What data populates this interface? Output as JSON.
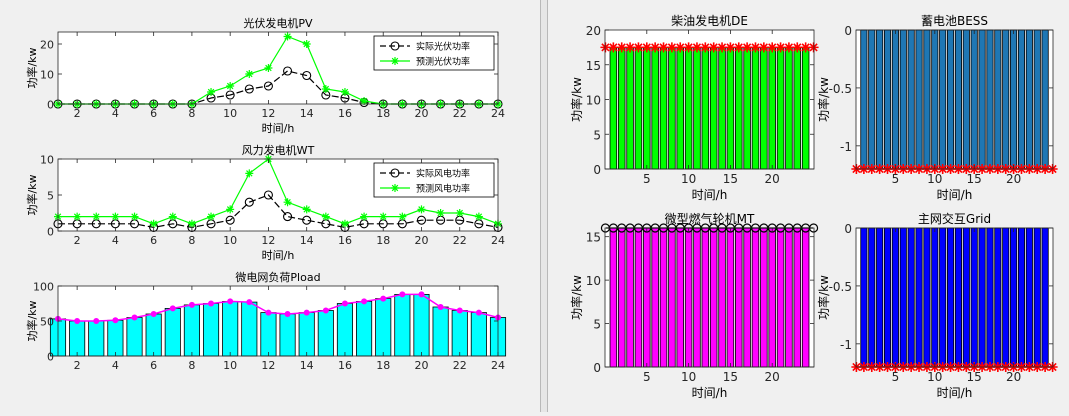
{
  "chart_data": [
    {
      "id": "pv",
      "type": "line",
      "title": "光伏发电机PV",
      "xlabel": "时间/h",
      "ylabel": "功率/kw",
      "x": [
        1,
        2,
        3,
        4,
        5,
        6,
        7,
        8,
        9,
        10,
        11,
        12,
        13,
        14,
        15,
        16,
        17,
        18,
        19,
        20,
        21,
        22,
        23,
        24
      ],
      "xlim": [
        1,
        24
      ],
      "ylim": [
        0,
        24
      ],
      "xticks": [
        2,
        4,
        6,
        8,
        10,
        12,
        14,
        16,
        18,
        20,
        22,
        24
      ],
      "yticks": [
        0,
        10,
        20
      ],
      "legend_position": "top-right",
      "series": [
        {
          "name": "实际光伏功率",
          "color": "#000000",
          "marker": "circle",
          "values": [
            0,
            0,
            0,
            0,
            0,
            0,
            0,
            0,
            2,
            3,
            5,
            6,
            11,
            9.5,
            3,
            2,
            0.5,
            0,
            0,
            0,
            0,
            0,
            0,
            0
          ]
        },
        {
          "name": "预测光伏功率",
          "color": "#00ff00",
          "marker": "star",
          "values": [
            0,
            0,
            0,
            0,
            0,
            0,
            0,
            0,
            4,
            6,
            10,
            12,
            22.5,
            20,
            5,
            4,
            1,
            0,
            0,
            0,
            0,
            0,
            0,
            0
          ]
        }
      ]
    },
    {
      "id": "wt",
      "type": "line",
      "title": "风力发电机WT",
      "xlabel": "时间/h",
      "ylabel": "功率/kw",
      "x": [
        1,
        2,
        3,
        4,
        5,
        6,
        7,
        8,
        9,
        10,
        11,
        12,
        13,
        14,
        15,
        16,
        17,
        18,
        19,
        20,
        21,
        22,
        23,
        24
      ],
      "xlim": [
        1,
        24
      ],
      "ylim": [
        0,
        10
      ],
      "xticks": [
        2,
        4,
        6,
        8,
        10,
        12,
        14,
        16,
        18,
        20,
        22,
        24
      ],
      "yticks": [
        0,
        5,
        10
      ],
      "legend_position": "top-right",
      "series": [
        {
          "name": "实际风电功率",
          "color": "#000000",
          "marker": "circle",
          "values": [
            1,
            1,
            1,
            1,
            1,
            0.5,
            1,
            0.5,
            1,
            1.5,
            4,
            5,
            2,
            1.5,
            1,
            0.5,
            1,
            1,
            1,
            1.5,
            1.5,
            1.5,
            1,
            0.5
          ]
        },
        {
          "name": "预测风电功率",
          "color": "#00ff00",
          "marker": "star",
          "values": [
            2,
            2,
            2,
            2,
            2,
            1,
            2,
            1,
            2,
            3,
            8,
            10,
            4,
            3,
            2,
            1,
            2,
            2,
            2,
            3,
            2.5,
            2.5,
            2,
            1
          ]
        }
      ]
    },
    {
      "id": "load",
      "type": "bar",
      "title": "微电网负荷Pload",
      "xlabel": "",
      "ylabel": "功率/kw",
      "x": [
        1,
        2,
        3,
        4,
        5,
        6,
        7,
        8,
        9,
        10,
        11,
        12,
        13,
        14,
        15,
        16,
        17,
        18,
        19,
        20,
        21,
        22,
        23,
        24
      ],
      "xlim": [
        1,
        24
      ],
      "ylim": [
        0,
        100
      ],
      "xticks": [
        2,
        4,
        6,
        8,
        10,
        12,
        14,
        16,
        18,
        20,
        22,
        24
      ],
      "yticks": [
        0,
        50,
        100
      ],
      "bar_color": "#00ffff",
      "line_color": "#ff00ff",
      "values": [
        53,
        50,
        50,
        51,
        55,
        60,
        68,
        73,
        75,
        78,
        77,
        62,
        60,
        62,
        65,
        75,
        78,
        82,
        88,
        88,
        70,
        65,
        62,
        55
      ]
    },
    {
      "id": "de",
      "type": "bar",
      "title": "柴油发电机DE",
      "xlabel": "时间/h",
      "ylabel": "功率/kw",
      "x": [
        1,
        2,
        3,
        4,
        5,
        6,
        7,
        8,
        9,
        10,
        11,
        12,
        13,
        14,
        15,
        16,
        17,
        18,
        19,
        20,
        21,
        22,
        23,
        24
      ],
      "xlim": [
        0,
        25
      ],
      "ylim": [
        0,
        20
      ],
      "xticks": [
        5,
        10,
        15,
        20
      ],
      "yticks": [
        0,
        5,
        10,
        15,
        20
      ],
      "bar_color": "#00ff00",
      "marker_color": "#ff0000",
      "marker": "star",
      "values": [
        17.5,
        17.5,
        17.5,
        17.5,
        17.5,
        17.5,
        17.5,
        17.5,
        17.5,
        17.5,
        17.5,
        17.5,
        17.5,
        17.5,
        17.5,
        17.5,
        17.5,
        17.5,
        17.5,
        17.5,
        17.5,
        17.5,
        17.5,
        17.5
      ]
    },
    {
      "id": "bess",
      "type": "bar",
      "title": "蓄电池BESS",
      "xlabel": "时间/h",
      "ylabel": "功率/kw",
      "x": [
        1,
        2,
        3,
        4,
        5,
        6,
        7,
        8,
        9,
        10,
        11,
        12,
        13,
        14,
        15,
        16,
        17,
        18,
        19,
        20,
        21,
        22,
        23,
        24
      ],
      "xlim": [
        0,
        25
      ],
      "ylim": [
        -1.2,
        0
      ],
      "xticks": [
        5,
        10,
        15,
        20
      ],
      "yticks": [
        -1,
        -0.5,
        0
      ],
      "bar_color": "#1f77b4",
      "marker_color": "#ff0000",
      "marker": "star",
      "values": [
        -1.2,
        -1.2,
        -1.2,
        -1.2,
        -1.2,
        -1.2,
        -1.2,
        -1.2,
        -1.2,
        -1.2,
        -1.2,
        -1.2,
        -1.2,
        -1.2,
        -1.2,
        -1.2,
        -1.2,
        -1.2,
        -1.2,
        -1.2,
        -1.2,
        -1.2,
        -1.2,
        -1.2
      ]
    },
    {
      "id": "mt",
      "type": "bar",
      "title": "微型燃气轮机MT",
      "xlabel": "时间/h",
      "ylabel": "功率/kw",
      "x": [
        1,
        2,
        3,
        4,
        5,
        6,
        7,
        8,
        9,
        10,
        11,
        12,
        13,
        14,
        15,
        16,
        17,
        18,
        19,
        20,
        21,
        22,
        23,
        24
      ],
      "xlim": [
        0,
        25
      ],
      "ylim": [
        0,
        16
      ],
      "xticks": [
        5,
        10,
        15,
        20
      ],
      "yticks": [
        0,
        5,
        10,
        15
      ],
      "bar_color": "#ff00ff",
      "marker_color": "#000000",
      "marker": "circle",
      "values": [
        16,
        16,
        16,
        16,
        16,
        16,
        16,
        16,
        16,
        16,
        16,
        16,
        16,
        16,
        16,
        16,
        16,
        16,
        16,
        16,
        16,
        16,
        16,
        16
      ]
    },
    {
      "id": "grid",
      "type": "bar",
      "title": "主网交互Grid",
      "xlabel": "时间/h",
      "ylabel": "功率/kw",
      "x": [
        1,
        2,
        3,
        4,
        5,
        6,
        7,
        8,
        9,
        10,
        11,
        12,
        13,
        14,
        15,
        16,
        17,
        18,
        19,
        20,
        21,
        22,
        23,
        24
      ],
      "xlim": [
        0,
        25
      ],
      "ylim": [
        -1.2,
        0
      ],
      "xticks": [
        5,
        10,
        15,
        20
      ],
      "yticks": [
        -1,
        -0.5,
        0
      ],
      "bar_color": "#0000ff",
      "marker_color": "#ff0000",
      "marker": "star",
      "values": [
        -1.2,
        -1.2,
        -1.2,
        -1.2,
        -1.2,
        -1.2,
        -1.2,
        -1.2,
        -1.2,
        -1.2,
        -1.2,
        -1.2,
        -1.2,
        -1.2,
        -1.2,
        -1.2,
        -1.2,
        -1.2,
        -1.2,
        -1.2,
        -1.2,
        -1.2,
        -1.2,
        -1.2
      ]
    }
  ]
}
